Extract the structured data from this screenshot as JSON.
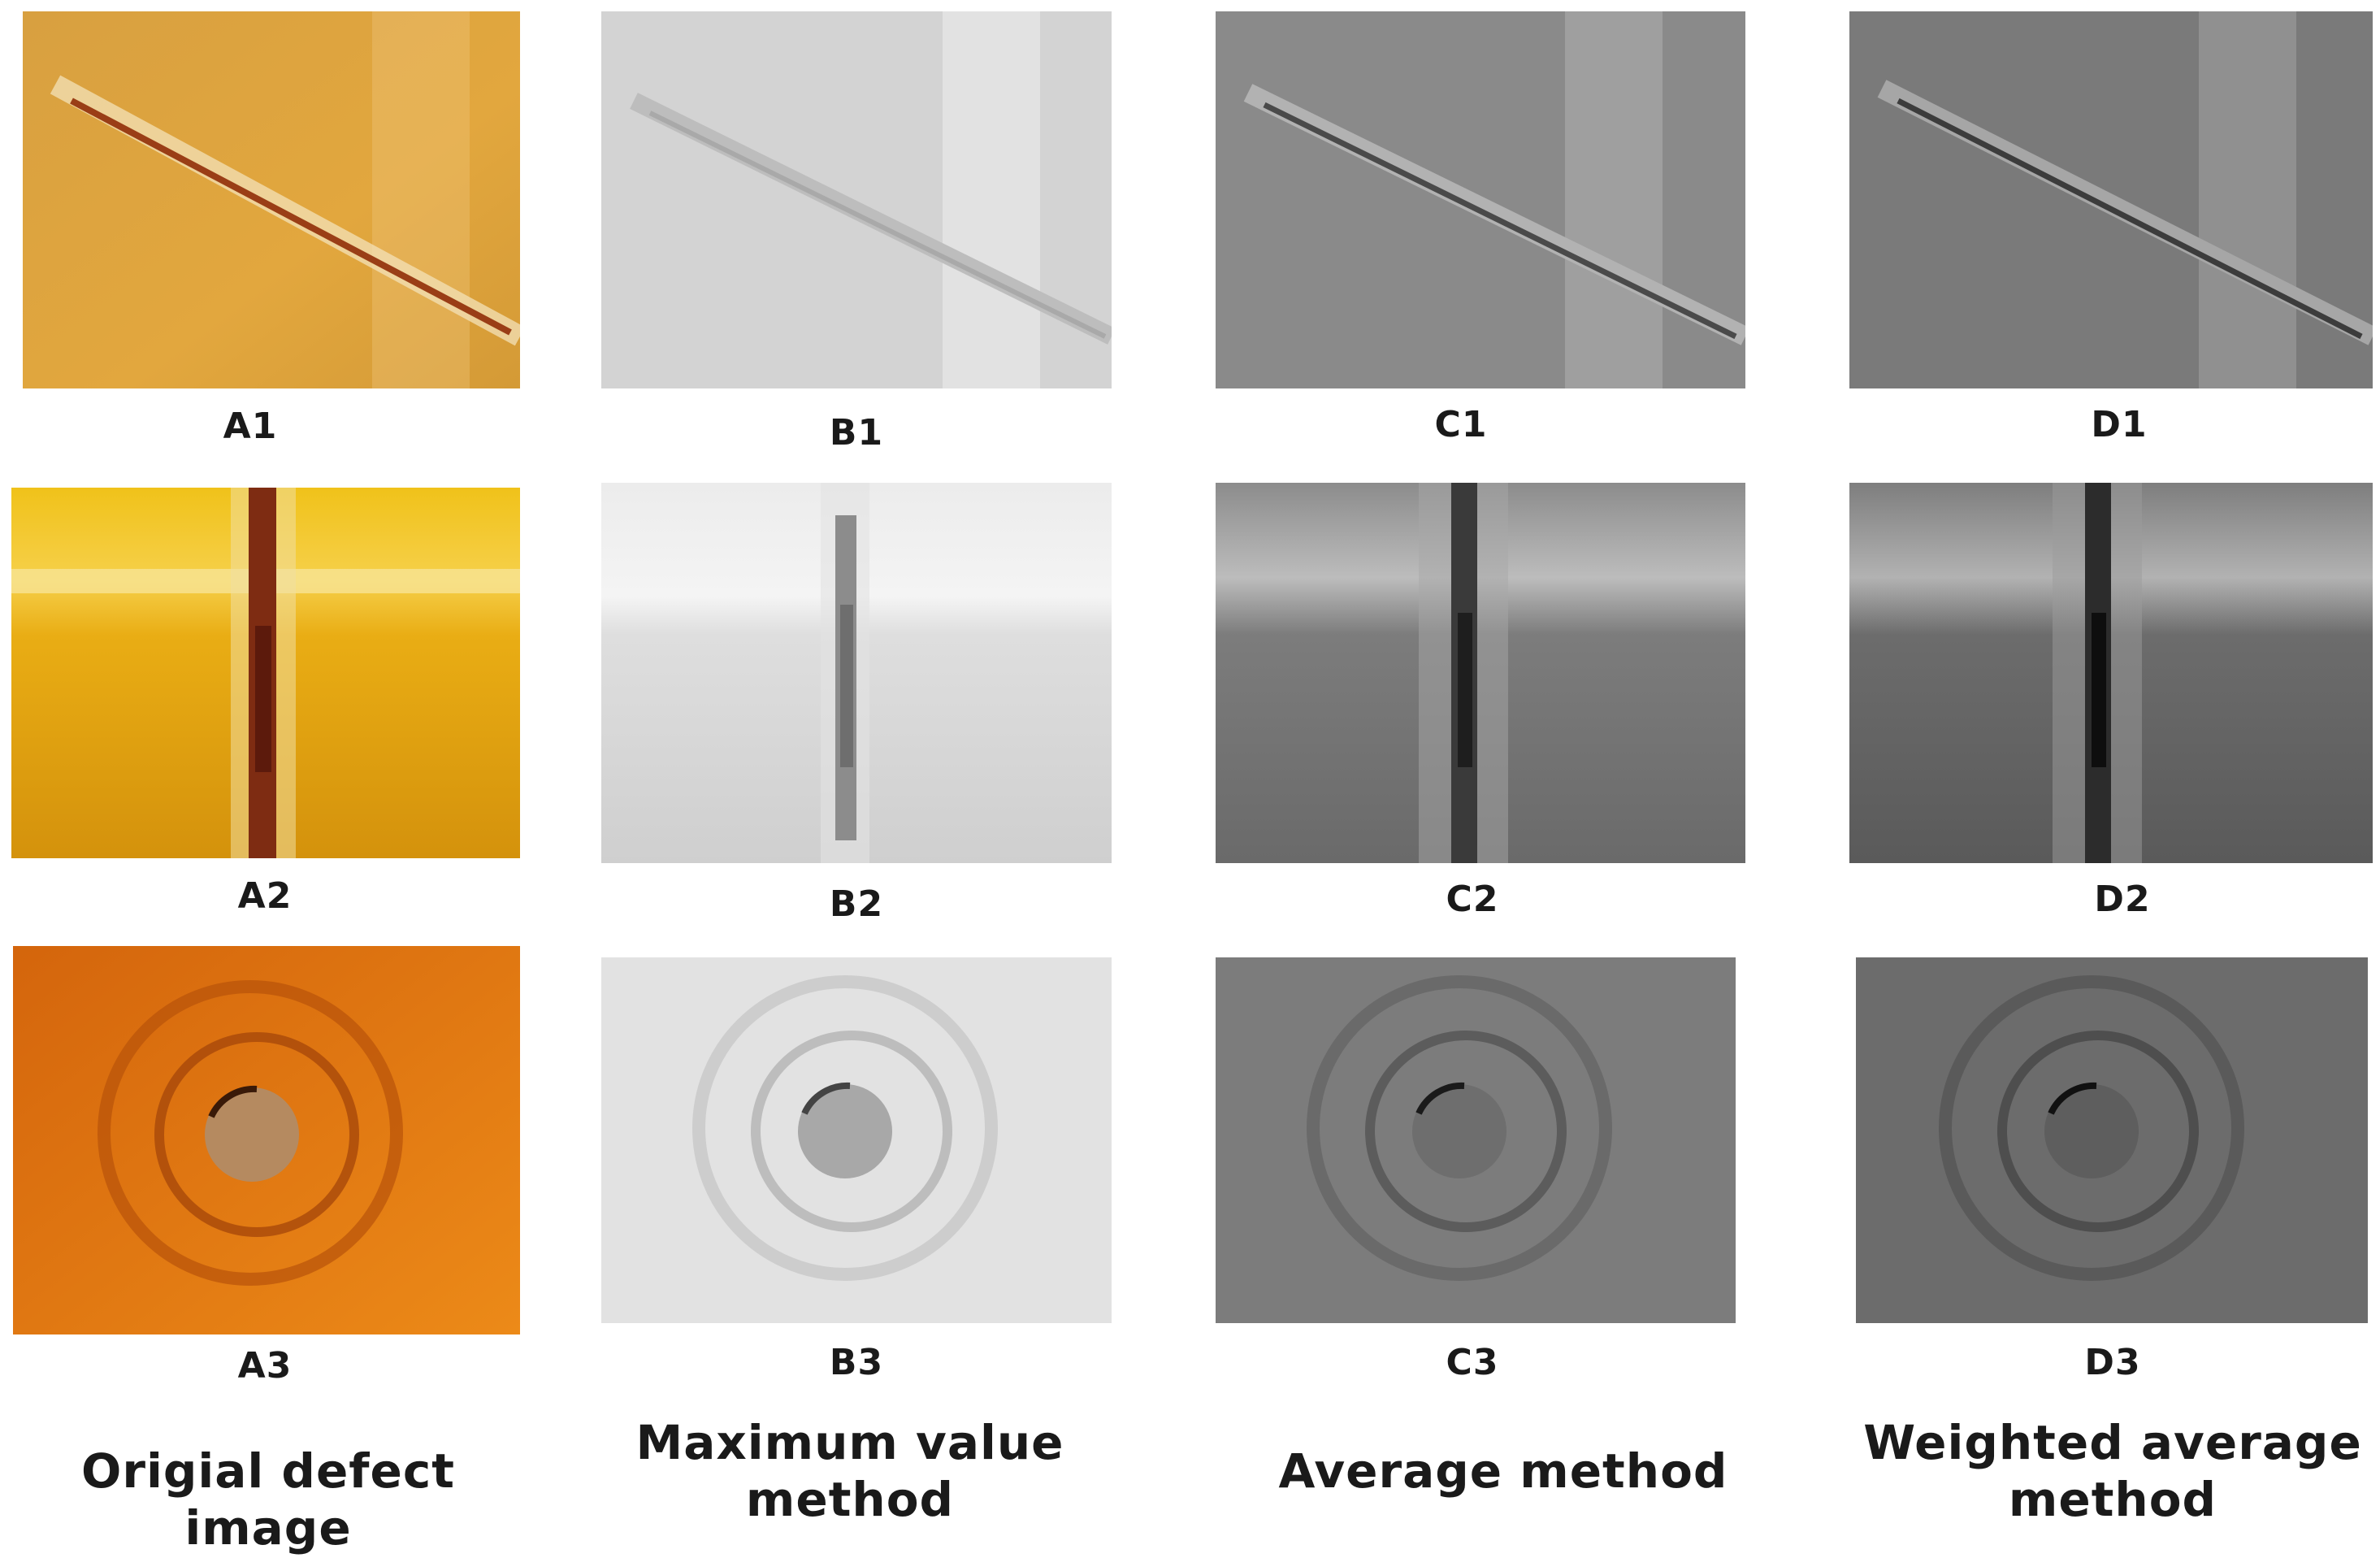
{
  "panels": {
    "A1": "A1",
    "B1": "B1",
    "C1": "C1",
    "D1": "D1",
    "A2": "A2",
    "B2": "B2",
    "C2": "C2",
    "D2": "D2",
    "A3": "A3",
    "B3": "B3",
    "C3": "C3",
    "D3": "D3"
  },
  "captions": {
    "original": "Origial defect image",
    "maximum": "Maximum value method",
    "average": "Average method",
    "weighted": "Weighted average method"
  },
  "colors": {
    "a1_base": "#dca33c",
    "a2_base": "#e8ac14",
    "a3_base": "#e07a10",
    "b_base": "#d6d6d6",
    "c_base": "#858585",
    "d_base": "#6e6e6e",
    "crack_dark": "#6a2410"
  }
}
